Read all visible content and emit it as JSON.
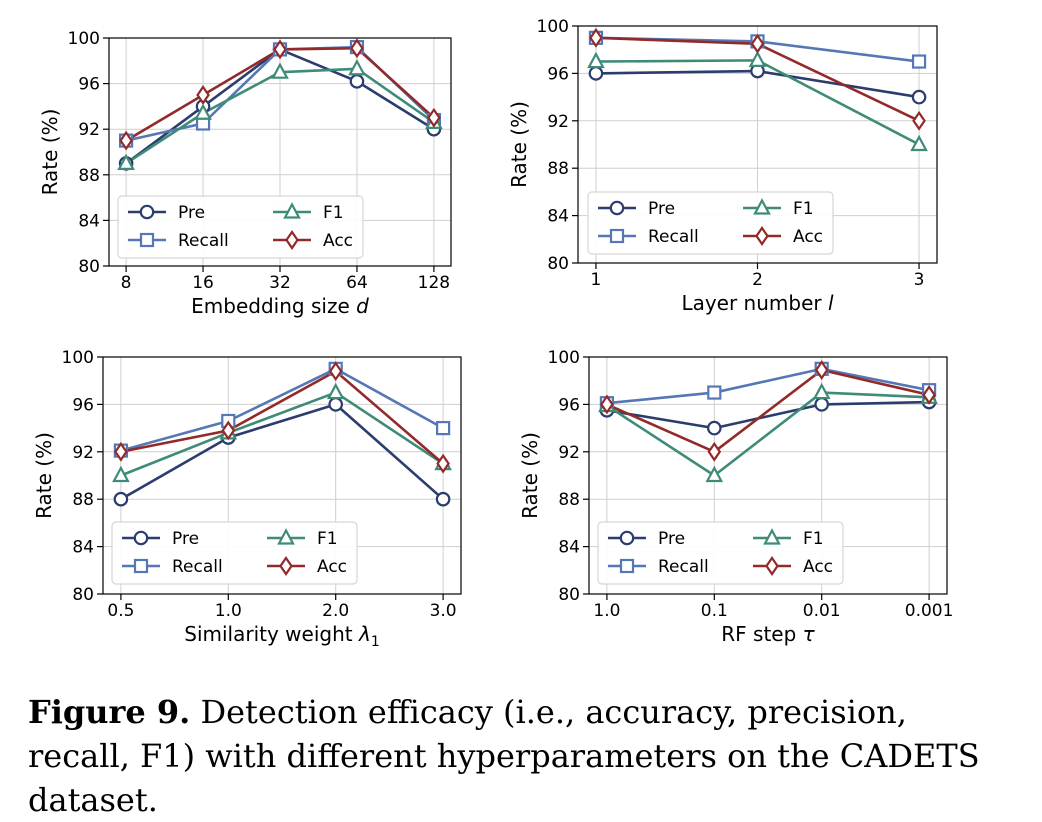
{
  "colors": {
    "Pre": "#2b3d6e",
    "Recall": "#5577b5",
    "F1": "#3e8b78",
    "Acc": "#922a2a"
  },
  "chart_data": [
    {
      "type": "line",
      "title": "",
      "xlabel": "Embedding size d",
      "xlabel_main": "Embedding size ",
      "xlabel_sym": "d",
      "xlabel_sub": "",
      "ylabel": "Rate (%)",
      "categories": [
        "8",
        "16",
        "32",
        "64",
        "128"
      ],
      "ylim": [
        80,
        100
      ],
      "yticks": [
        "80",
        "84",
        "88",
        "92",
        "96",
        "100"
      ],
      "grid": true,
      "legend_position": "lower-left",
      "series": [
        {
          "name": "Pre",
          "marker": "circle",
          "values": [
            89,
            94,
            99,
            96.2,
            92
          ]
        },
        {
          "name": "Recall",
          "marker": "square",
          "values": [
            91,
            92.5,
            99,
            99.2,
            92.8
          ]
        },
        {
          "name": "F1",
          "marker": "triangle",
          "values": [
            89,
            93.4,
            97,
            97.3,
            92.6
          ]
        },
        {
          "name": "Acc",
          "marker": "diamond",
          "values": [
            91,
            95,
            99,
            99.1,
            93
          ]
        }
      ]
    },
    {
      "type": "line",
      "title": "",
      "xlabel": "Layer number l",
      "xlabel_main": "Layer number ",
      "xlabel_sym": "l",
      "xlabel_sub": "",
      "ylabel": "Rate (%)",
      "categories": [
        "1",
        "2",
        "3"
      ],
      "ylim": [
        80,
        100
      ],
      "yticks": [
        "80",
        "84",
        "88",
        "92",
        "96",
        "100"
      ],
      "grid": true,
      "legend_position": "lower-left",
      "series": [
        {
          "name": "Pre",
          "marker": "circle",
          "values": [
            96,
            96.2,
            94
          ]
        },
        {
          "name": "Recall",
          "marker": "square",
          "values": [
            99,
            98.7,
            97
          ]
        },
        {
          "name": "F1",
          "marker": "triangle",
          "values": [
            97,
            97.1,
            90
          ]
        },
        {
          "name": "Acc",
          "marker": "diamond",
          "values": [
            99,
            98.5,
            92
          ]
        }
      ]
    },
    {
      "type": "line",
      "title": "",
      "xlabel": "Similarity weight λ1",
      "xlabel_main": "Similarity weight ",
      "xlabel_sym": "λ",
      "xlabel_sub": "1",
      "ylabel": "Rate (%)",
      "categories": [
        "0.5",
        "1.0",
        "2.0",
        "3.0"
      ],
      "ylim": [
        80,
        100
      ],
      "yticks": [
        "80",
        "84",
        "88",
        "92",
        "96",
        "100"
      ],
      "grid": true,
      "legend_position": "lower-left",
      "series": [
        {
          "name": "Pre",
          "marker": "circle",
          "values": [
            88,
            93.2,
            96,
            88
          ]
        },
        {
          "name": "Recall",
          "marker": "square",
          "values": [
            92.1,
            94.6,
            99,
            94
          ]
        },
        {
          "name": "F1",
          "marker": "triangle",
          "values": [
            90,
            93.6,
            97,
            91
          ]
        },
        {
          "name": "Acc",
          "marker": "diamond",
          "values": [
            92,
            93.8,
            98.8,
            91
          ]
        }
      ]
    },
    {
      "type": "line",
      "title": "",
      "xlabel": "RF step τ",
      "xlabel_main": "RF step ",
      "xlabel_sym": "τ",
      "xlabel_sub": "",
      "ylabel": "Rate (%)",
      "categories": [
        "1.0",
        "0.1",
        "0.01",
        "0.001"
      ],
      "ylim": [
        80,
        100
      ],
      "yticks": [
        "80",
        "84",
        "88",
        "92",
        "96",
        "100"
      ],
      "grid": true,
      "legend_position": "lower-left",
      "series": [
        {
          "name": "Pre",
          "marker": "circle",
          "values": [
            95.5,
            94,
            96,
            96.2
          ]
        },
        {
          "name": "Recall",
          "marker": "square",
          "values": [
            96.1,
            97,
            99,
            97.2
          ]
        },
        {
          "name": "F1",
          "marker": "triangle",
          "values": [
            95.9,
            90,
            97,
            96.6
          ]
        },
        {
          "name": "Acc",
          "marker": "diamond",
          "values": [
            96,
            92,
            98.9,
            96.8
          ]
        }
      ]
    }
  ],
  "caption": {
    "label": "Figure 9.",
    "text": " Detection efficacy (i.e., accuracy, precision, recall, F1) with different hyperparameters on the CADETS dataset."
  }
}
